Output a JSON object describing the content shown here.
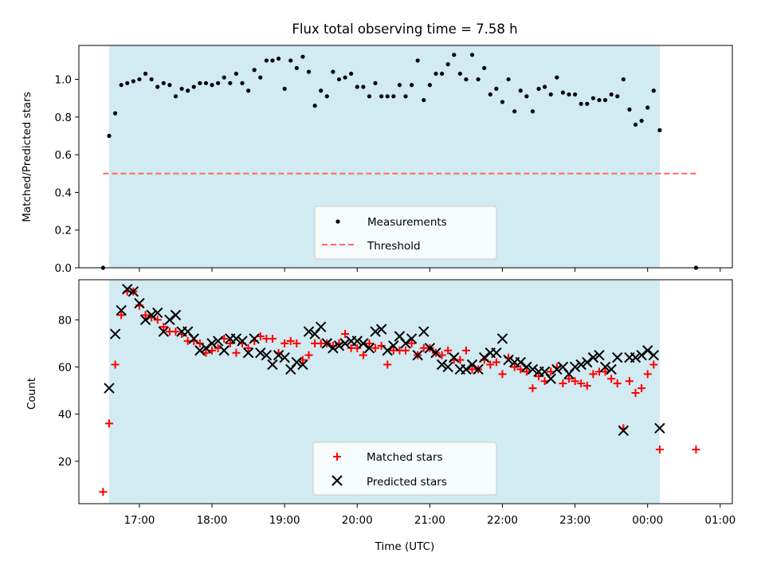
{
  "chart_data": [
    {
      "type": "scatter",
      "title": "Flux total observing time = 7.58 h",
      "xlabel": "",
      "ylabel": "Matched/Predicted stars",
      "xlim": [
        "16:10",
        "01:10"
      ],
      "ylim": [
        0,
        1.18
      ],
      "yticks": [
        "0.0",
        "0.2",
        "0.4",
        "0.6",
        "0.8",
        "1.0"
      ],
      "shaded_span": [
        "16:35",
        "00:10"
      ],
      "colors": {
        "shade": "#add8e6",
        "points": "#000000",
        "threshold": "#ff6666"
      },
      "legend": {
        "placement": "lower center",
        "entries": [
          {
            "label": "Measurements",
            "marker": "dot"
          },
          {
            "label": "Threshold",
            "marker": "dashed-line"
          }
        ]
      },
      "threshold": {
        "value": 0.5,
        "x_range": [
          "16:30",
          "00:40"
        ]
      },
      "series": [
        {
          "name": "Measurements",
          "x": [
            "16:30",
            "16:35",
            "16:40",
            "16:45",
            "16:50",
            "16:55",
            "17:00",
            "17:05",
            "17:10",
            "17:15",
            "17:20",
            "17:25",
            "17:30",
            "17:35",
            "17:40",
            "17:45",
            "17:50",
            "17:55",
            "18:00",
            "18:05",
            "18:10",
            "18:15",
            "18:20",
            "18:25",
            "18:30",
            "18:35",
            "18:40",
            "18:45",
            "18:50",
            "18:55",
            "19:00",
            "19:05",
            "19:10",
            "19:15",
            "19:20",
            "19:25",
            "19:30",
            "19:35",
            "19:40",
            "19:45",
            "19:50",
            "19:55",
            "20:00",
            "20:05",
            "20:10",
            "20:15",
            "20:20",
            "20:25",
            "20:30",
            "20:35",
            "20:40",
            "20:45",
            "20:50",
            "20:55",
            "21:00",
            "21:05",
            "21:10",
            "21:15",
            "21:20",
            "21:25",
            "21:30",
            "21:35",
            "21:40",
            "21:45",
            "21:50",
            "21:55",
            "22:00",
            "22:05",
            "22:10",
            "22:15",
            "22:20",
            "22:25",
            "22:30",
            "22:35",
            "22:40",
            "22:45",
            "22:50",
            "22:55",
            "23:00",
            "23:05",
            "23:10",
            "23:15",
            "23:20",
            "23:25",
            "23:30",
            "23:35",
            "23:40",
            "23:45",
            "23:50",
            "23:55",
            "00:00",
            "00:05",
            "00:10",
            "00:40"
          ],
          "y": [
            0.0,
            0.7,
            0.82,
            0.97,
            0.98,
            0.99,
            1.0,
            1.03,
            1.0,
            0.96,
            0.98,
            0.97,
            0.91,
            0.95,
            0.94,
            0.96,
            0.98,
            0.98,
            0.97,
            0.98,
            1.01,
            0.98,
            1.03,
            0.98,
            0.94,
            1.05,
            1.01,
            1.1,
            1.1,
            1.11,
            0.95,
            1.1,
            1.06,
            1.12,
            1.04,
            0.86,
            0.94,
            0.91,
            1.04,
            1.0,
            1.01,
            1.03,
            0.96,
            0.96,
            0.91,
            0.98,
            0.91,
            0.91,
            0.91,
            0.97,
            0.91,
            0.97,
            1.1,
            0.89,
            0.97,
            1.03,
            1.03,
            1.08,
            1.13,
            1.03,
            1.0,
            1.13,
            1.0,
            1.06,
            0.92,
            0.95,
            0.88,
            1.0,
            0.83,
            0.94,
            0.91,
            0.83,
            0.95,
            0.96,
            0.92,
            1.01,
            0.93,
            0.92,
            0.92,
            0.87,
            0.87,
            0.9,
            0.89,
            0.89,
            0.92,
            0.91,
            1.0,
            0.84,
            0.76,
            0.78,
            0.85,
            0.94,
            0.73,
            0.0
          ]
        }
      ]
    },
    {
      "type": "scatter",
      "title": "",
      "xlabel": "Time (UTC)",
      "ylabel": "Count",
      "xlim": [
        "16:10",
        "01:10"
      ],
      "ylim": [
        2,
        97
      ],
      "xticks": [
        "17:00",
        "18:00",
        "19:00",
        "20:00",
        "21:00",
        "22:00",
        "23:00",
        "00:00",
        "01:00"
      ],
      "yticks": [
        "20",
        "40",
        "60",
        "80"
      ],
      "shaded_span": [
        "16:35",
        "00:10"
      ],
      "colors": {
        "shade": "#add8e6",
        "matched": "#ff0000",
        "predicted": "#000000"
      },
      "legend": {
        "placement": "lower center",
        "entries": [
          {
            "label": "Matched stars",
            "marker": "plus"
          },
          {
            "label": "Predicted stars",
            "marker": "x"
          }
        ]
      },
      "series": [
        {
          "name": "Matched stars",
          "x": [
            "16:30",
            "16:35",
            "16:40",
            "16:45",
            "16:50",
            "16:55",
            "17:00",
            "17:05",
            "17:10",
            "17:15",
            "17:20",
            "17:25",
            "17:30",
            "17:35",
            "17:40",
            "17:45",
            "17:50",
            "17:55",
            "18:00",
            "18:05",
            "18:10",
            "18:15",
            "18:20",
            "18:25",
            "18:30",
            "18:35",
            "18:40",
            "18:45",
            "18:50",
            "18:55",
            "19:00",
            "19:05",
            "19:10",
            "19:15",
            "19:20",
            "19:25",
            "19:30",
            "19:35",
            "19:40",
            "19:45",
            "19:50",
            "19:55",
            "20:00",
            "20:05",
            "20:10",
            "20:15",
            "20:20",
            "20:25",
            "20:30",
            "20:35",
            "20:40",
            "20:45",
            "20:50",
            "20:55",
            "21:00",
            "21:05",
            "21:10",
            "21:15",
            "21:20",
            "21:25",
            "21:30",
            "21:35",
            "21:40",
            "21:45",
            "21:50",
            "21:55",
            "22:00",
            "22:05",
            "22:10",
            "22:15",
            "22:20",
            "22:25",
            "22:30",
            "22:35",
            "22:40",
            "22:45",
            "22:50",
            "22:55",
            "23:00",
            "23:05",
            "23:10",
            "23:15",
            "23:20",
            "23:25",
            "23:30",
            "23:35",
            "23:40",
            "23:45",
            "23:50",
            "23:55",
            "00:00",
            "00:05",
            "00:10",
            "00:40"
          ],
          "y": [
            7,
            36,
            61,
            82,
            92,
            92,
            86,
            82,
            81,
            80,
            77,
            75,
            75,
            74,
            71,
            71,
            70,
            66,
            67,
            68,
            72,
            70,
            66,
            70,
            68,
            71,
            73,
            72,
            72,
            66,
            70,
            71,
            70,
            63,
            65,
            70,
            70,
            70,
            69,
            70,
            74,
            68,
            68,
            65,
            70,
            68,
            69,
            61,
            67,
            67,
            67,
            70,
            65,
            68,
            68,
            66,
            65,
            67,
            63,
            63,
            67,
            59,
            59,
            63,
            61,
            62,
            57,
            64,
            60,
            59,
            58,
            51,
            56,
            54,
            58,
            60,
            53,
            55,
            54,
            53,
            52,
            57,
            58,
            58,
            55,
            53,
            34,
            54,
            49,
            51,
            57,
            61,
            25,
            25
          ]
        },
        {
          "name": "Predicted stars",
          "x": [
            "16:35",
            "16:40",
            "16:45",
            "16:50",
            "16:55",
            "17:00",
            "17:05",
            "17:10",
            "17:15",
            "17:20",
            "17:25",
            "17:30",
            "17:35",
            "17:40",
            "17:45",
            "17:50",
            "17:55",
            "18:00",
            "18:05",
            "18:10",
            "18:15",
            "18:20",
            "18:25",
            "18:30",
            "18:35",
            "18:40",
            "18:45",
            "18:50",
            "18:55",
            "19:00",
            "19:05",
            "19:10",
            "19:15",
            "19:20",
            "19:25",
            "19:30",
            "19:35",
            "19:40",
            "19:45",
            "19:50",
            "19:55",
            "20:00",
            "20:05",
            "20:10",
            "20:15",
            "20:20",
            "20:25",
            "20:30",
            "20:35",
            "20:40",
            "20:45",
            "20:50",
            "20:55",
            "21:00",
            "21:05",
            "21:10",
            "21:15",
            "21:20",
            "21:25",
            "21:30",
            "21:35",
            "21:40",
            "21:45",
            "21:50",
            "21:55",
            "22:00",
            "22:05",
            "22:10",
            "22:15",
            "22:20",
            "22:25",
            "22:30",
            "22:35",
            "22:40",
            "22:45",
            "22:50",
            "22:55",
            "23:00",
            "23:05",
            "23:10",
            "23:15",
            "23:20",
            "23:25",
            "23:30",
            "23:35",
            "23:40",
            "23:45",
            "23:50",
            "23:55",
            "00:00",
            "00:05",
            "00:10"
          ],
          "y": [
            51,
            74,
            84,
            93,
            92,
            87,
            80,
            82,
            83,
            75,
            80,
            82,
            75,
            75,
            72,
            67,
            68,
            70,
            71,
            67,
            72,
            72,
            71,
            66,
            72,
            66,
            65,
            61,
            65,
            64,
            59,
            62,
            61,
            75,
            74,
            77,
            70,
            68,
            69,
            70,
            71,
            71,
            70,
            68,
            75,
            76,
            67,
            69,
            73,
            70,
            72,
            65,
            75,
            68,
            66,
            61,
            60,
            64,
            59,
            59,
            61,
            59,
            64,
            66,
            66,
            72,
            63,
            62,
            62,
            60,
            59,
            58,
            58,
            55,
            59,
            60,
            57,
            60,
            61,
            62,
            64,
            65,
            60,
            59,
            64,
            33,
            64,
            64,
            65,
            67,
            65,
            34
          ]
        }
      ]
    }
  ]
}
